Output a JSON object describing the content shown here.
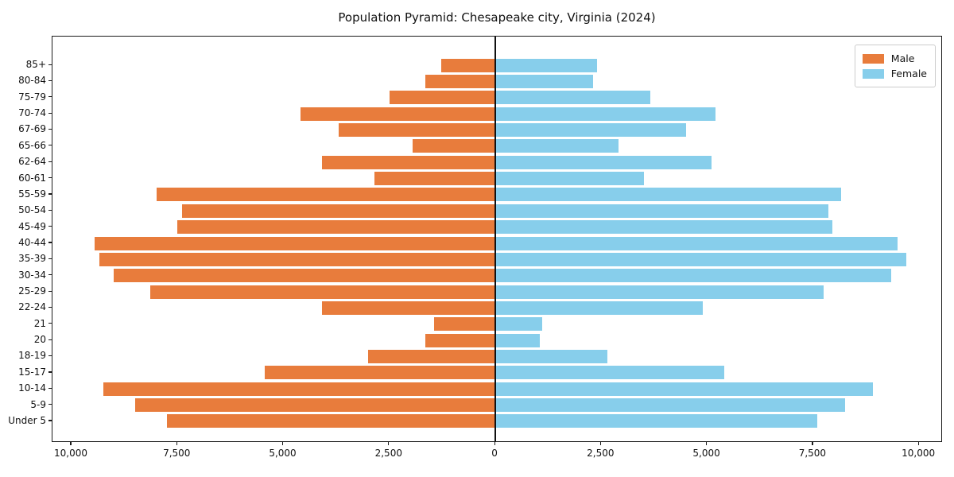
{
  "title": "Population Pyramid: Chesapeake city, Virginia (2024)",
  "legend": {
    "male": "Male",
    "female": "Female"
  },
  "colors": {
    "male": "#E87C3C",
    "female": "#87CEEB",
    "axis": "#1a1a1a",
    "background": "#ffffff"
  },
  "chart_data": {
    "type": "bar",
    "subtype": "population-pyramid",
    "title": "Population Pyramid: Chesapeake city, Virginia (2024)",
    "categories_top_to_bottom": [
      "85+",
      "80-84",
      "75-79",
      "70-74",
      "67-69",
      "65-66",
      "62-64",
      "60-61",
      "55-59",
      "50-54",
      "45-49",
      "40-44",
      "35-39",
      "30-34",
      "25-29",
      "22-24",
      "21",
      "20",
      "18-19",
      "15-17",
      "10-14",
      "5-9",
      "Under 5"
    ],
    "series": [
      {
        "name": "Male",
        "side": "left",
        "color": "#E87C3C",
        "values": [
          1270,
          1650,
          2500,
          4600,
          3700,
          1950,
          4100,
          2850,
          8000,
          7400,
          7500,
          9450,
          9350,
          9000,
          8150,
          4100,
          1450,
          1650,
          3000,
          5450,
          9250,
          8500,
          7750
        ]
      },
      {
        "name": "Female",
        "side": "right",
        "color": "#87CEEB",
        "values": [
          2400,
          2300,
          3650,
          5200,
          4500,
          2900,
          5100,
          3500,
          8150,
          7850,
          7950,
          9500,
          9700,
          9350,
          7750,
          4900,
          1100,
          1050,
          2650,
          5400,
          8900,
          8250,
          7600
        ]
      }
    ],
    "x_tick_values": [
      -10000,
      -7500,
      -5000,
      -2500,
      0,
      2500,
      5000,
      7500,
      10000
    ],
    "x_tick_labels": [
      "10,000",
      "7,500",
      "5,000",
      "2,500",
      "0",
      "2,500",
      "5,000",
      "7,500",
      "10,000"
    ],
    "xlim": [
      -10450,
      10560
    ],
    "grid": false,
    "legend_position": "upper right",
    "legend_entries": [
      "Male",
      "Female"
    ]
  }
}
